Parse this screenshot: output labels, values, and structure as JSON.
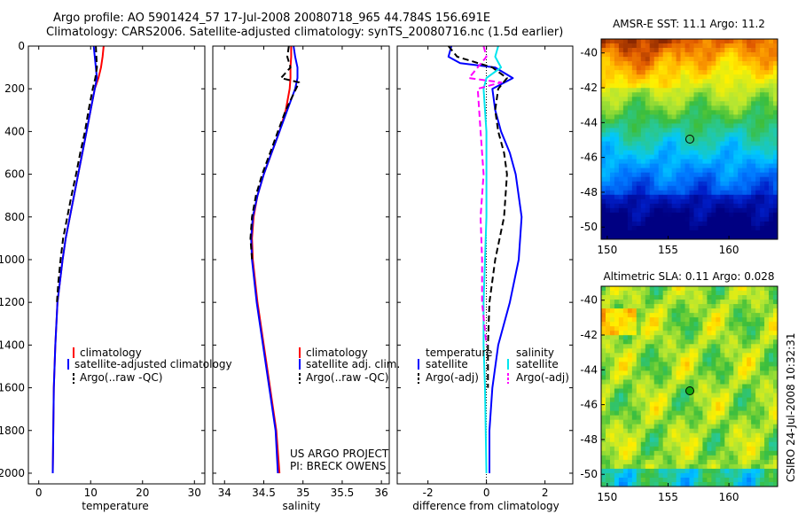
{
  "title": {
    "line1": "Argo profile: AO 5901424_57 17-Jul-2008 20080718_965 44.784S 156.691E",
    "line2": "Climatology: CARS2006. Satellite-adjusted climatology: synTS_20080716.nc (1.5d earlier)"
  },
  "colors": {
    "climatology": "#ff0000",
    "satellite": "#0000ff",
    "argo": "#000000",
    "salinity_satellite": "#00e5ee",
    "salinity_argo": "#ff00ff"
  },
  "credits": {
    "project": "US ARGO PROJECT",
    "pi": "PI: BRECK OWENS",
    "stamp": "CSIRO 24-Jul-2008 10:32:31"
  },
  "chart_data": [
    {
      "type": "line",
      "id": "temperature",
      "xlabel": "temperature",
      "ylabel": "",
      "xlim": [
        -2,
        32
      ],
      "ylim": [
        2050,
        0
      ],
      "xticks": [
        0,
        10,
        20,
        30
      ],
      "yticks": [
        0,
        200,
        400,
        600,
        800,
        1000,
        1200,
        1400,
        1600,
        1800,
        2000
      ],
      "legend": [
        "climatology",
        "satellite-adjusted climatology",
        "Argo(..raw -QC)"
      ],
      "series": [
        {
          "name": "climatology",
          "color": "#ff0000",
          "style": "solid",
          "x": [
            12.5,
            12.3,
            12.0,
            11.5,
            10.8,
            10.0,
            9.2,
            8.4,
            7.6,
            6.8,
            6.0,
            5.2,
            4.6,
            4.1,
            3.6,
            3.2,
            2.9,
            2.7
          ],
          "y": [
            0,
            50,
            100,
            150,
            200,
            300,
            400,
            500,
            600,
            700,
            800,
            900,
            1000,
            1100,
            1200,
            1400,
            1600,
            2000
          ]
        },
        {
          "name": "satellite-adjusted climatology",
          "color": "#0000ff",
          "style": "solid",
          "x": [
            10.6,
            10.8,
            11.0,
            11.2,
            10.8,
            10.0,
            9.2,
            8.4,
            7.6,
            6.8,
            6.0,
            5.2,
            4.6,
            4.1,
            3.6,
            3.2,
            2.9,
            2.7
          ],
          "y": [
            0,
            50,
            100,
            150,
            200,
            300,
            400,
            500,
            600,
            700,
            800,
            900,
            1000,
            1100,
            1200,
            1400,
            1600,
            2000
          ]
        },
        {
          "name": "Argo(..raw -QC)",
          "color": "#000000",
          "style": "dashed",
          "x": [
            11.0,
            11.1,
            11.2,
            10.9,
            10.4,
            9.6,
            8.9,
            8.0,
            7.2,
            6.3,
            5.5,
            4.7,
            4.2,
            3.8,
            3.5
          ],
          "y": [
            0,
            50,
            100,
            150,
            200,
            300,
            400,
            500,
            600,
            700,
            800,
            900,
            1000,
            1100,
            1200
          ]
        }
      ]
    },
    {
      "type": "line",
      "id": "salinity",
      "xlabel": "salinity",
      "ylabel": "",
      "xlim": [
        33.85,
        36.1
      ],
      "ylim": [
        2050,
        0
      ],
      "xticks": [
        34,
        34.5,
        35,
        35.5,
        36
      ],
      "yticks": [
        0,
        200,
        400,
        600,
        800,
        1000,
        1200,
        1400,
        1600,
        1800,
        2000
      ],
      "legend": [
        "climatology",
        "satellite adj. clim.",
        "Argo(..raw -QC)"
      ],
      "series": [
        {
          "name": "climatology",
          "color": "#ff0000",
          "style": "solid",
          "x": [
            34.85,
            34.85,
            34.84,
            34.84,
            34.83,
            34.78,
            34.7,
            34.6,
            34.5,
            34.42,
            34.37,
            34.35,
            34.36,
            34.42,
            34.5,
            34.58,
            34.66,
            34.7
          ],
          "y": [
            0,
            50,
            100,
            150,
            200,
            300,
            400,
            500,
            600,
            700,
            800,
            900,
            1000,
            1200,
            1400,
            1600,
            1800,
            2000
          ]
        },
        {
          "name": "satellite adj. clim.",
          "color": "#0000ff",
          "style": "solid",
          "x": [
            34.88,
            34.9,
            34.93,
            34.93,
            34.9,
            34.8,
            34.7,
            34.6,
            34.5,
            34.42,
            34.36,
            34.34,
            34.35,
            34.41,
            34.49,
            34.57,
            34.65,
            34.68
          ],
          "y": [
            0,
            50,
            100,
            150,
            200,
            300,
            400,
            500,
            600,
            700,
            800,
            900,
            1000,
            1200,
            1400,
            1600,
            1800,
            2000
          ]
        },
        {
          "name": "Argo(..raw -QC)",
          "color": "#000000",
          "style": "dashed",
          "x": [
            34.82,
            34.8,
            34.84,
            34.72,
            34.95,
            34.78,
            34.68,
            34.58,
            34.48,
            34.4,
            34.35,
            34.33,
            34.35
          ],
          "y": [
            0,
            50,
            100,
            150,
            170,
            300,
            400,
            500,
            600,
            700,
            800,
            900,
            1000
          ]
        }
      ]
    },
    {
      "type": "line",
      "id": "difference",
      "xlabel": "difference from climatology",
      "ylabel": "",
      "xlim": [
        -3.05,
        2.95
      ],
      "ylim": [
        2050,
        0
      ],
      "xticks": [
        -2,
        0,
        2
      ],
      "xtick_labels": [
        "-2",
        "0",
        "2"
      ],
      "yticks": [
        0,
        200,
        400,
        600,
        800,
        1000,
        1200,
        1400,
        1600,
        1800,
        2000
      ],
      "legend_temperature": {
        "title": "temperature",
        "entries": [
          "satellite",
          "Argo(-adj)"
        ]
      },
      "legend_salinity": {
        "title": "salinity",
        "entries": [
          "satellite",
          "Argo(-adj)"
        ]
      },
      "series": [
        {
          "name": "temperature satellite",
          "color": "#0000ff",
          "style": "solid",
          "x": [
            -1.2,
            -1.3,
            -0.9,
            0.3,
            0.9,
            0.2,
            0.3,
            0.5,
            0.8,
            1.0,
            1.2,
            1.1,
            0.8,
            0.4,
            0.2,
            0.1,
            0.1
          ],
          "y": [
            0,
            50,
            80,
            100,
            150,
            200,
            300,
            400,
            500,
            600,
            800,
            1000,
            1200,
            1400,
            1600,
            1800,
            2000
          ]
        },
        {
          "name": "temperature Argo(-adj)",
          "color": "#000000",
          "style": "dashed",
          "x": [
            -1.3,
            -1.0,
            0.2,
            0.7,
            0.4,
            0.3,
            0.4,
            0.6,
            0.7,
            0.6,
            0.3,
            0.1,
            0.05,
            0.05
          ],
          "y": [
            0,
            50,
            100,
            150,
            200,
            300,
            400,
            500,
            600,
            800,
            1000,
            1200,
            1400,
            1600
          ]
        },
        {
          "name": "salinity satellite",
          "color": "#00e5ee",
          "style": "solid",
          "x": [
            0.4,
            0.3,
            0.5,
            0.0,
            -0.1,
            0.0,
            0.0,
            0.0,
            -0.05,
            -0.1,
            -0.1,
            -0.05,
            0.0
          ],
          "y": [
            0,
            50,
            100,
            150,
            200,
            400,
            600,
            800,
            1000,
            1200,
            1400,
            1600,
            2000
          ]
        },
        {
          "name": "salinity Argo(-adj)",
          "color": "#ff00ff",
          "style": "dashed",
          "x": [
            -0.1,
            0.0,
            -0.6,
            0.5,
            -0.3,
            -0.2,
            -0.1,
            -0.2,
            -0.15,
            -0.15,
            0.0
          ],
          "y": [
            0,
            50,
            150,
            170,
            200,
            400,
            600,
            800,
            1000,
            1200,
            1400
          ]
        }
      ]
    },
    {
      "type": "heatmap",
      "id": "sst-map",
      "title": "AMSR-E SST: 11.1  Argo: 11.2",
      "xlim": [
        149.5,
        164
      ],
      "ylim": [
        -50.7,
        -39.2
      ],
      "xticks": [
        150,
        155,
        160
      ],
      "yticks": [
        -40,
        -42,
        -44,
        -46,
        -48,
        -50
      ],
      "marker": {
        "lon": 156.691,
        "lat": -44.784,
        "color": "none"
      }
    },
    {
      "type": "heatmap",
      "id": "sla-map",
      "title": "Altimetric SLA: 0.11  Argo: 0.028",
      "xlim": [
        149.5,
        164
      ],
      "ylim": [
        -50.7,
        -39.2
      ],
      "xticks": [
        150,
        155,
        160
      ],
      "yticks": [
        -40,
        -42,
        -44,
        -46,
        -48,
        -50
      ],
      "marker": {
        "lon": 156.691,
        "lat": -44.784,
        "color": "#11aa11"
      }
    }
  ]
}
